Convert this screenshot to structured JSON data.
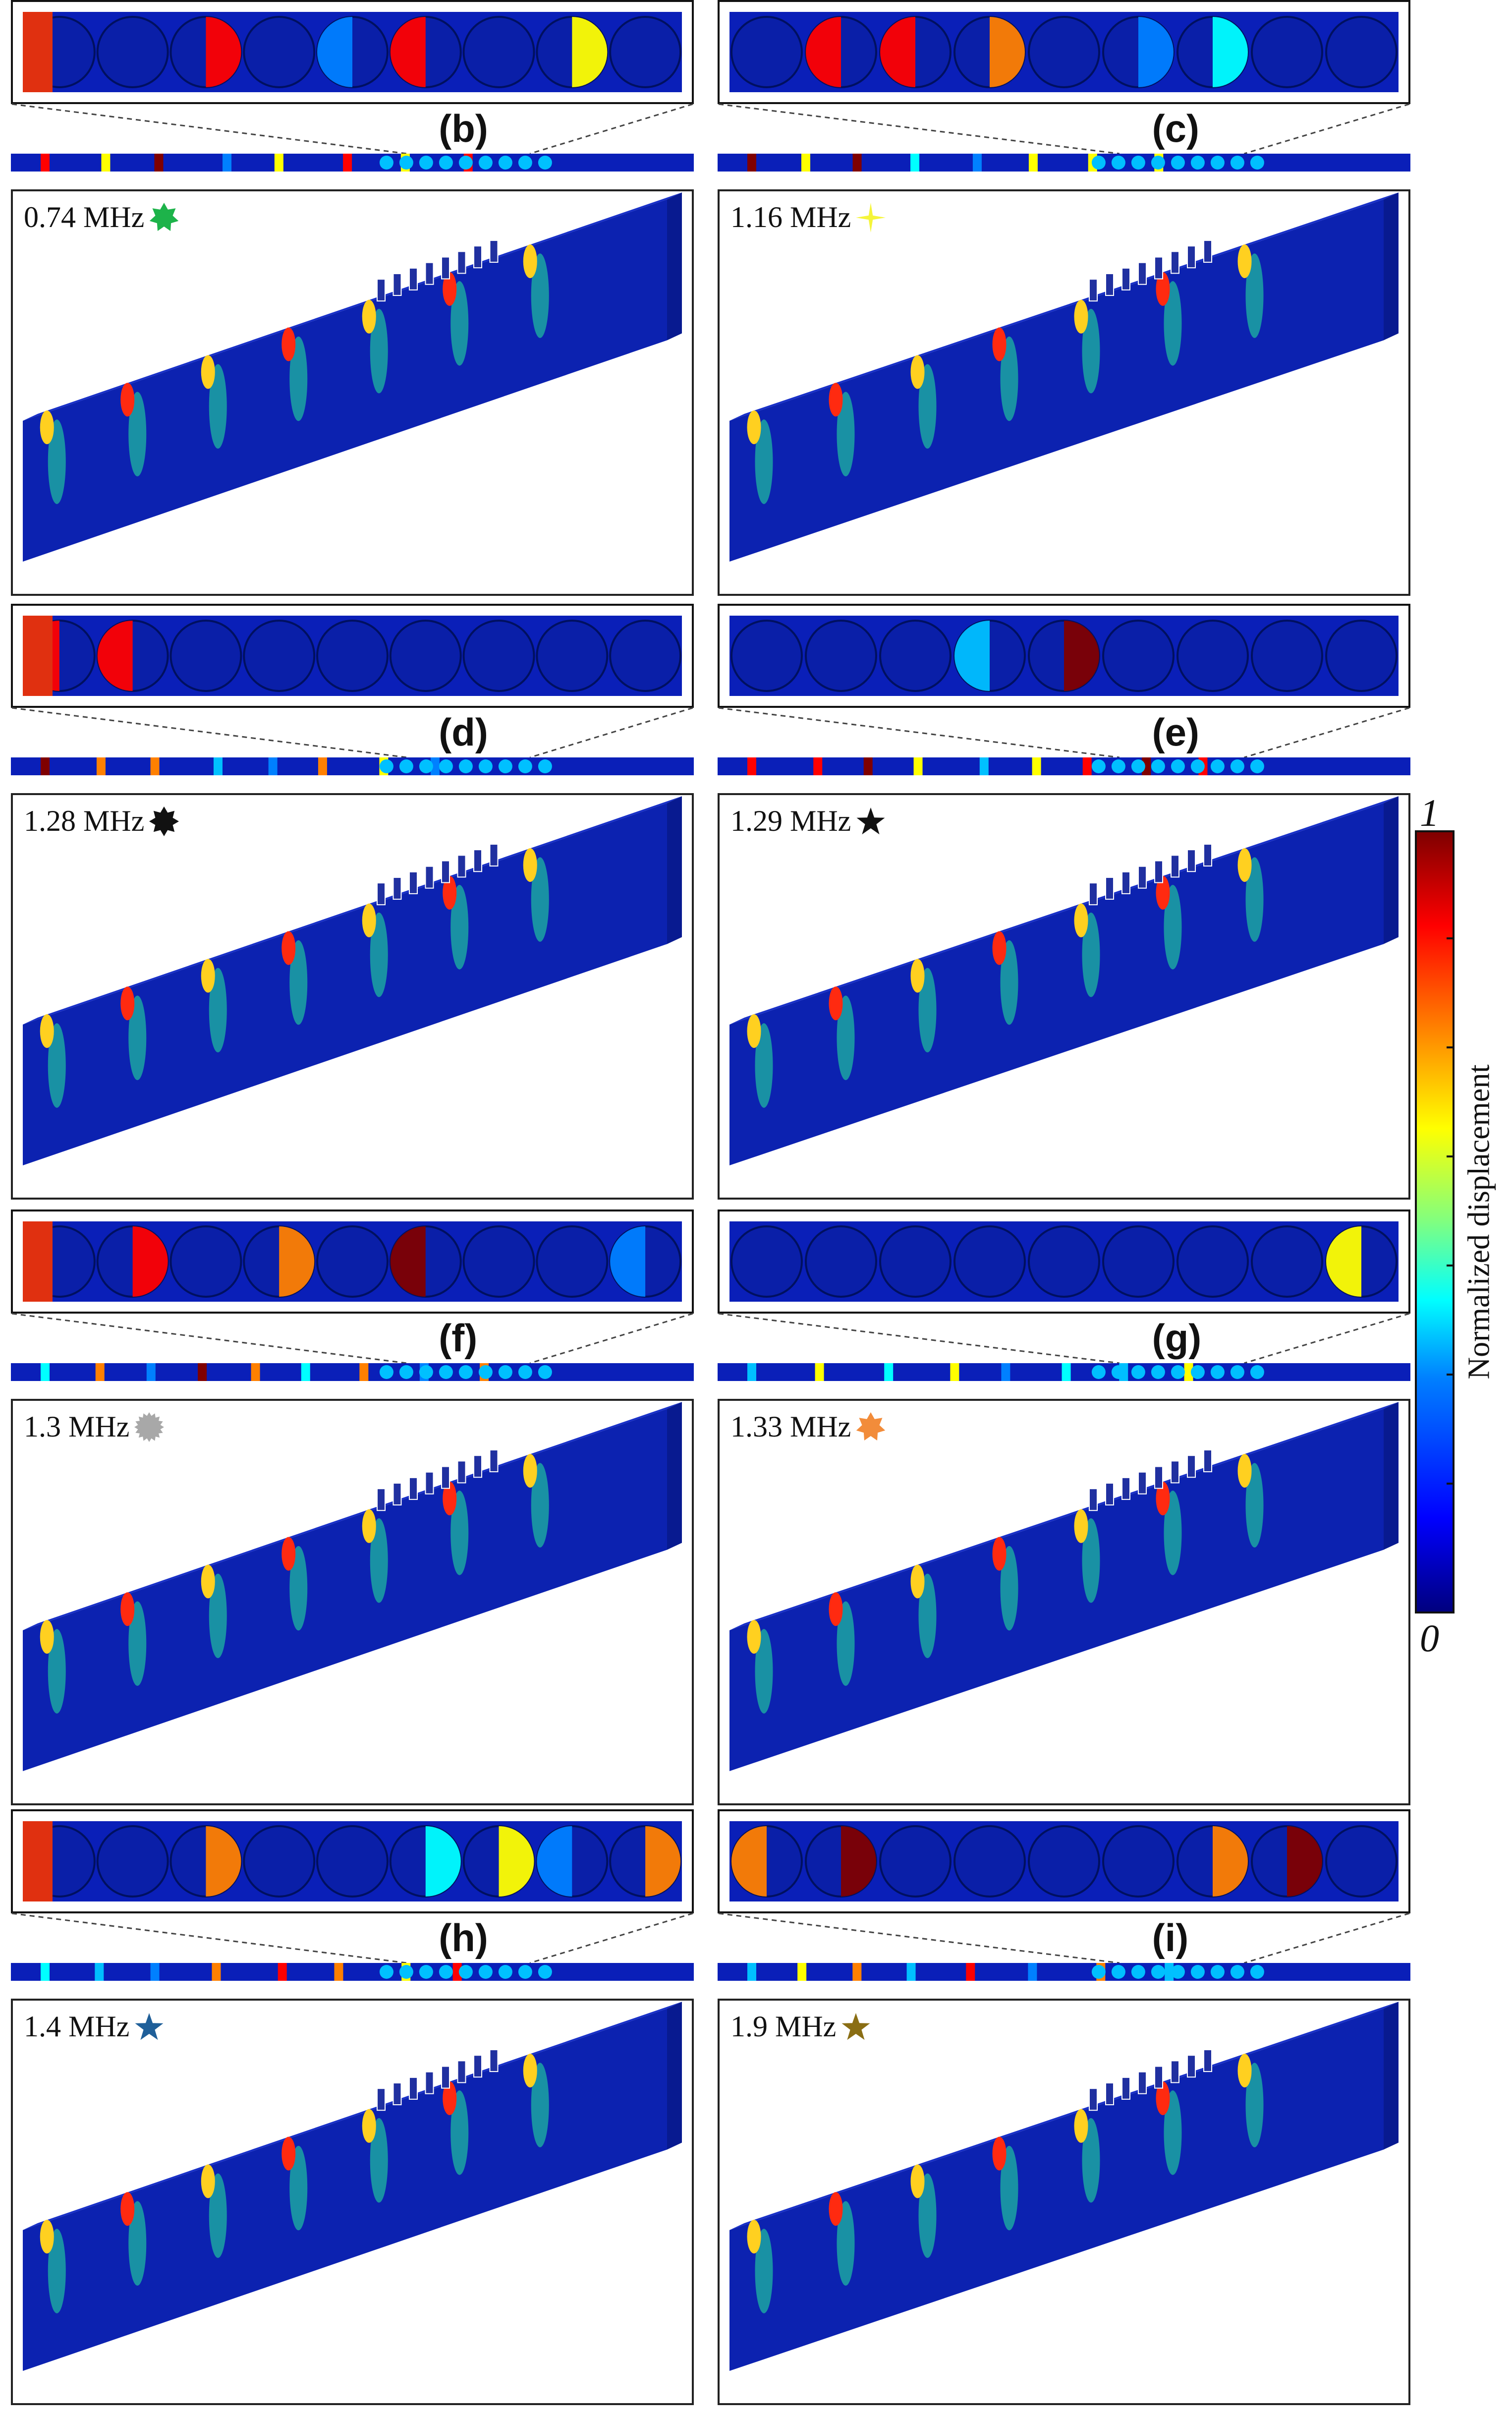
{
  "colorbar": {
    "label": "Normalized displacement",
    "max_label": "1",
    "min_label": "0",
    "colors": [
      "#00007f",
      "#0000ff",
      "#00ffff",
      "#ffff00",
      "#ff0000",
      "#7f0000"
    ]
  },
  "panels": [
    {
      "tag": "(b)",
      "freq": "0.74 MHz",
      "marker": "star-7-icon",
      "marker_color": "#1db34a"
    },
    {
      "tag": "(c)",
      "freq": "1.16 MHz",
      "marker": "sparkle-4-icon",
      "marker_color": "#f5f53a"
    },
    {
      "tag": "(d)",
      "freq": "1.28 MHz",
      "marker": "star-8-icon",
      "marker_color": "#111111"
    },
    {
      "tag": "(e)",
      "freq": "1.29 MHz",
      "marker": "star-5-icon",
      "marker_color": "#111111"
    },
    {
      "tag": "(f)",
      "freq": "1.3 MHz",
      "marker": "star-16-icon",
      "marker_color": "#a8a8a8"
    },
    {
      "tag": "(g)",
      "freq": "1.33 MHz",
      "marker": "star-7-icon",
      "marker_color": "#f28c3a"
    },
    {
      "tag": "(h)",
      "freq": "1.4 MHz",
      "marker": "star-5-icon",
      "marker_color": "#1f5f99"
    },
    {
      "tag": "(i)",
      "freq": "1.9 MHz",
      "marker": "star-5-icon",
      "marker_color": "#8a6e14"
    }
  ]
}
